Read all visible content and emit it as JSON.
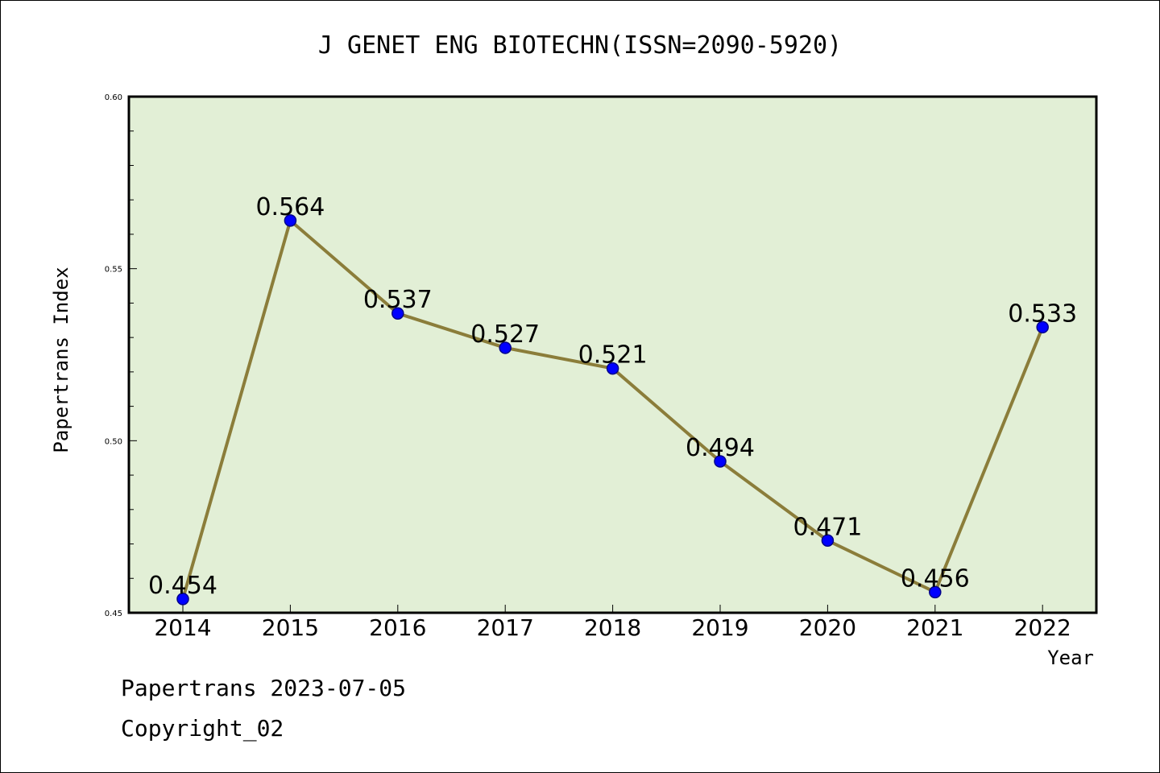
{
  "chart_data": {
    "type": "line",
    "title": "J GENET ENG BIOTECHN(ISSN=2090-5920)",
    "xlabel": "Year",
    "ylabel": "Papertrans Index",
    "categories": [
      "2014",
      "2015",
      "2016",
      "2017",
      "2018",
      "2019",
      "2020",
      "2021",
      "2022"
    ],
    "series": [
      {
        "values": [
          0.454,
          0.564,
          0.537,
          0.527,
          0.521,
          0.494,
          0.471,
          0.456,
          0.533
        ],
        "data_labels": [
          "0.454",
          "0.564",
          "0.537",
          "0.527",
          "0.521",
          "0.494",
          "0.471",
          "0.456",
          "0.533"
        ]
      }
    ],
    "ylim": [
      0.45,
      0.6
    ],
    "yticks": [
      0.45,
      0.5,
      0.55,
      0.6
    ],
    "ytick_labels": [
      "0.45",
      "0.50",
      "0.55",
      "0.60"
    ],
    "grid": false,
    "legend": "none",
    "colors": {
      "plot_background": "#e2efd6",
      "line": "#8b7d3a",
      "marker": "#0000ff",
      "marker_edge": "#00008b"
    }
  },
  "footer": {
    "line1": "Papertrans 2023-07-05",
    "line2": "Copyright_02"
  }
}
